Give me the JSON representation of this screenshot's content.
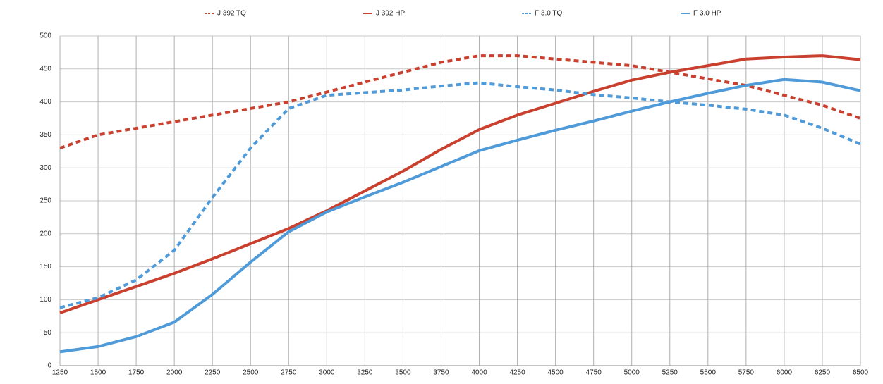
{
  "chart_data": {
    "type": "line",
    "x": [
      1250,
      1500,
      1750,
      2000,
      2250,
      2500,
      2750,
      3000,
      3250,
      3500,
      3750,
      4000,
      4250,
      4500,
      4750,
      5000,
      5250,
      5500,
      5750,
      6000,
      6250,
      6500
    ],
    "series": [
      {
        "name": "J 392 TQ",
        "color": "#c9402f",
        "line_style": "dashed",
        "values": [
          330,
          350,
          360,
          370,
          380,
          390,
          400,
          415,
          430,
          445,
          460,
          470,
          470,
          465,
          460,
          455,
          445,
          435,
          425,
          410,
          395,
          375
        ]
      },
      {
        "name": "J 392 HP",
        "color": "#c9402f",
        "line_style": "solid",
        "values": [
          80,
          100,
          120,
          140,
          162,
          185,
          208,
          235,
          265,
          295,
          328,
          358,
          380,
          398,
          416,
          433,
          445,
          455,
          465,
          468,
          470,
          464
        ]
      },
      {
        "name": "F 3.0 TQ",
        "color": "#4f9ad8",
        "line_style": "dashed",
        "values": [
          88,
          103,
          130,
          175,
          255,
          330,
          390,
          410,
          414,
          418,
          424,
          429,
          423,
          418,
          411,
          406,
          400,
          395,
          389,
          380,
          360,
          336
        ]
      },
      {
        "name": "F 3.0 HP",
        "color": "#4f9ad8",
        "line_style": "solid",
        "values": [
          21,
          29,
          44,
          66,
          108,
          157,
          203,
          233,
          256,
          278,
          302,
          326,
          342,
          357,
          371,
          386,
          400,
          413,
          425,
          434,
          430,
          417
        ]
      }
    ],
    "xlim": [
      1250,
      6500
    ],
    "xticks": [
      1250,
      1500,
      1750,
      2000,
      2250,
      2500,
      2750,
      3000,
      3250,
      3500,
      3750,
      4000,
      4250,
      4500,
      4750,
      5000,
      5250,
      5500,
      5750,
      6000,
      6250,
      6500
    ],
    "ylim": [
      0,
      500
    ],
    "yticks": [
      0,
      50,
      100,
      150,
      200,
      250,
      300,
      350,
      400,
      450,
      500
    ],
    "grid": true,
    "legend": "top"
  }
}
